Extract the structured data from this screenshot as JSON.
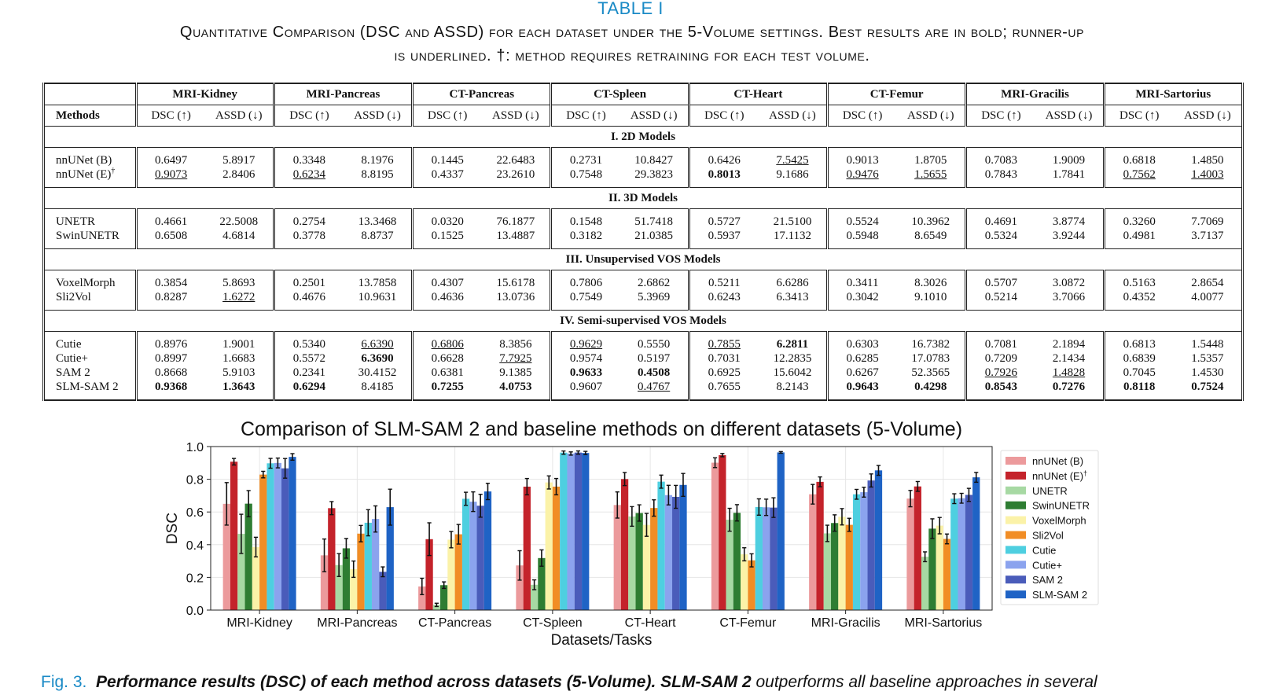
{
  "table": {
    "label": "TABLE I",
    "caption_line1": "Quantitative Comparison (DSC and ASSD) for each dataset under the 5-Volume settings. Best results are in bold; runner-up",
    "caption_line2": "is underlined. †: method requires retraining for each test volume.",
    "methods_header": "Methods",
    "datasets": [
      "MRI-Kidney",
      "MRI-Pancreas",
      "CT-Pancreas",
      "CT-Spleen",
      "CT-Heart",
      "CT-Femur",
      "MRI-Gracilis",
      "MRI-Sartorius"
    ],
    "metric_dsc": "DSC (↑)",
    "metric_assd": "ASSD (↓)",
    "sections": [
      {
        "title": "I. 2D Models",
        "rows": [
          {
            "method": "nnUNet (B)",
            "sup": "",
            "cells": [
              [
                "0.6497",
                ""
              ],
              [
                "5.8917",
                ""
              ],
              [
                "0.3348",
                ""
              ],
              [
                "8.1976",
                ""
              ],
              [
                "0.1445",
                ""
              ],
              [
                "22.6483",
                ""
              ],
              [
                "0.2731",
                ""
              ],
              [
                "10.8427",
                ""
              ],
              [
                "0.6426",
                ""
              ],
              [
                "7.5425",
                "u"
              ],
              [
                "0.9013",
                ""
              ],
              [
                "1.8705",
                ""
              ],
              [
                "0.7083",
                ""
              ],
              [
                "1.9009",
                ""
              ],
              [
                "0.6818",
                ""
              ],
              [
                "1.4850",
                ""
              ]
            ]
          },
          {
            "method": "nnUNet (E)",
            "sup": "†",
            "cells": [
              [
                "0.9073",
                "u"
              ],
              [
                "2.8406",
                ""
              ],
              [
                "0.6234",
                "u"
              ],
              [
                "8.8195",
                ""
              ],
              [
                "0.4337",
                ""
              ],
              [
                "23.2610",
                ""
              ],
              [
                "0.7548",
                ""
              ],
              [
                "29.3823",
                ""
              ],
              [
                "0.8013",
                "b"
              ],
              [
                "9.1686",
                ""
              ],
              [
                "0.9476",
                "u"
              ],
              [
                "1.5655",
                "u"
              ],
              [
                "0.7843",
                ""
              ],
              [
                "1.7841",
                ""
              ],
              [
                "0.7562",
                "u"
              ],
              [
                "1.4003",
                "u"
              ]
            ]
          }
        ]
      },
      {
        "title": "II. 3D Models",
        "rows": [
          {
            "method": "UNETR",
            "sup": "",
            "cells": [
              [
                "0.4661",
                ""
              ],
              [
                "22.5008",
                ""
              ],
              [
                "0.2754",
                ""
              ],
              [
                "13.3468",
                ""
              ],
              [
                "0.0320",
                ""
              ],
              [
                "76.1877",
                ""
              ],
              [
                "0.1548",
                ""
              ],
              [
                "51.7418",
                ""
              ],
              [
                "0.5727",
                ""
              ],
              [
                "21.5100",
                ""
              ],
              [
                "0.5524",
                ""
              ],
              [
                "10.3962",
                ""
              ],
              [
                "0.4691",
                ""
              ],
              [
                "3.8774",
                ""
              ],
              [
                "0.3260",
                ""
              ],
              [
                "7.7069",
                ""
              ]
            ]
          },
          {
            "method": "SwinUNETR",
            "sup": "",
            "cells": [
              [
                "0.6508",
                ""
              ],
              [
                "4.6814",
                ""
              ],
              [
                "0.3778",
                ""
              ],
              [
                "8.8737",
                ""
              ],
              [
                "0.1525",
                ""
              ],
              [
                "13.4887",
                ""
              ],
              [
                "0.3182",
                ""
              ],
              [
                "21.0385",
                ""
              ],
              [
                "0.5937",
                ""
              ],
              [
                "17.1132",
                ""
              ],
              [
                "0.5948",
                ""
              ],
              [
                "8.6549",
                ""
              ],
              [
                "0.5324",
                ""
              ],
              [
                "3.9244",
                ""
              ],
              [
                "0.4981",
                ""
              ],
              [
                "3.7137",
                ""
              ]
            ]
          }
        ]
      },
      {
        "title": "III. Unsupervised VOS Models",
        "rows": [
          {
            "method": "VoxelMorph",
            "sup": "",
            "cells": [
              [
                "0.3854",
                ""
              ],
              [
                "5.8693",
                ""
              ],
              [
                "0.2501",
                ""
              ],
              [
                "13.7858",
                ""
              ],
              [
                "0.4307",
                ""
              ],
              [
                "15.6178",
                ""
              ],
              [
                "0.7806",
                ""
              ],
              [
                "2.6862",
                ""
              ],
              [
                "0.5211",
                ""
              ],
              [
                "6.6286",
                ""
              ],
              [
                "0.3411",
                ""
              ],
              [
                "8.3026",
                ""
              ],
              [
                "0.5707",
                ""
              ],
              [
                "3.0872",
                ""
              ],
              [
                "0.5163",
                ""
              ],
              [
                "2.8654",
                ""
              ]
            ]
          },
          {
            "method": "Sli2Vol",
            "sup": "",
            "cells": [
              [
                "0.8287",
                ""
              ],
              [
                "1.6272",
                "u"
              ],
              [
                "0.4676",
                ""
              ],
              [
                "10.9631",
                ""
              ],
              [
                "0.4636",
                ""
              ],
              [
                "13.0736",
                ""
              ],
              [
                "0.7549",
                ""
              ],
              [
                "5.3969",
                ""
              ],
              [
                "0.6243",
                ""
              ],
              [
                "6.3413",
                ""
              ],
              [
                "0.3042",
                ""
              ],
              [
                "9.1010",
                ""
              ],
              [
                "0.5214",
                ""
              ],
              [
                "3.7066",
                ""
              ],
              [
                "0.4352",
                ""
              ],
              [
                "4.0077",
                ""
              ]
            ]
          }
        ]
      },
      {
        "title": "IV. Semi-supervised VOS Models",
        "rows": [
          {
            "method": "Cutie",
            "sup": "",
            "cells": [
              [
                "0.8976",
                ""
              ],
              [
                "1.9001",
                ""
              ],
              [
                "0.5340",
                ""
              ],
              [
                "6.6390",
                "u"
              ],
              [
                "0.6806",
                "u"
              ],
              [
                "8.3856",
                ""
              ],
              [
                "0.9629",
                "u"
              ],
              [
                "0.5550",
                ""
              ],
              [
                "0.7855",
                "u"
              ],
              [
                "6.2811",
                "b"
              ],
              [
                "0.6303",
                ""
              ],
              [
                "16.7382",
                ""
              ],
              [
                "0.7081",
                ""
              ],
              [
                "2.1894",
                ""
              ],
              [
                "0.6813",
                ""
              ],
              [
                "1.5448",
                ""
              ]
            ]
          },
          {
            "method": "Cutie+",
            "sup": "",
            "cells": [
              [
                "0.8997",
                ""
              ],
              [
                "1.6683",
                ""
              ],
              [
                "0.5572",
                ""
              ],
              [
                "6.3690",
                "b"
              ],
              [
                "0.6628",
                ""
              ],
              [
                "7.7925",
                "u"
              ],
              [
                "0.9574",
                ""
              ],
              [
                "0.5197",
                ""
              ],
              [
                "0.7031",
                ""
              ],
              [
                "12.2835",
                ""
              ],
              [
                "0.6285",
                ""
              ],
              [
                "17.0783",
                ""
              ],
              [
                "0.7209",
                ""
              ],
              [
                "2.1434",
                ""
              ],
              [
                "0.6839",
                ""
              ],
              [
                "1.5357",
                ""
              ]
            ]
          },
          {
            "method": "SAM 2",
            "sup": "",
            "cells": [
              [
                "0.8668",
                ""
              ],
              [
                "5.9103",
                ""
              ],
              [
                "0.2341",
                ""
              ],
              [
                "30.4152",
                ""
              ],
              [
                "0.6381",
                ""
              ],
              [
                "9.1385",
                ""
              ],
              [
                "0.9633",
                "b"
              ],
              [
                "0.4508",
                "b"
              ],
              [
                "0.6925",
                ""
              ],
              [
                "15.6042",
                ""
              ],
              [
                "0.6267",
                ""
              ],
              [
                "52.3565",
                ""
              ],
              [
                "0.7926",
                "u"
              ],
              [
                "1.4828",
                "u"
              ],
              [
                "0.7045",
                ""
              ],
              [
                "1.4530",
                ""
              ]
            ]
          },
          {
            "method": "SLM-SAM 2",
            "sup": "",
            "cells": [
              [
                "0.9368",
                "b"
              ],
              [
                "1.3643",
                "b"
              ],
              [
                "0.6294",
                "b"
              ],
              [
                "8.4185",
                ""
              ],
              [
                "0.7255",
                "b"
              ],
              [
                "4.0753",
                "b"
              ],
              [
                "0.9607",
                ""
              ],
              [
                "0.4767",
                "u"
              ],
              [
                "0.7655",
                ""
              ],
              [
                "8.2143",
                ""
              ],
              [
                "0.9643",
                "b"
              ],
              [
                "0.4298",
                "b"
              ],
              [
                "0.8543",
                "b"
              ],
              [
                "0.7276",
                "b"
              ],
              [
                "0.8118",
                "b"
              ],
              [
                "0.7524",
                "b"
              ]
            ]
          }
        ]
      }
    ]
  },
  "figure_caption": {
    "label": "Fig. 3.",
    "bold": "Performance results (DSC) of each method across datasets (5-Volume). SLM-SAM 2",
    "rest": "outperforms all baseline approaches in several"
  },
  "chart_data": {
    "type": "bar",
    "title": "Comparison of SLM-SAM 2 and baseline methods on different datasets (5-Volume)",
    "xlabel": "Datasets/Tasks",
    "ylabel": "DSC",
    "ylim": [
      0,
      1.0
    ],
    "yticks": [
      "0.0",
      "0.2",
      "0.4",
      "0.6",
      "0.8",
      "1.0"
    ],
    "grid": true,
    "legend_position": "right",
    "categories": [
      "MRI-Kidney",
      "MRI-Pancreas",
      "CT-Pancreas",
      "CT-Spleen",
      "CT-Heart",
      "CT-Femur",
      "MRI-Gracilis",
      "MRI-Sartorius"
    ],
    "series": [
      {
        "name": "nnUNet (B)",
        "sup": "",
        "color": "#ec9a9c",
        "values": [
          0.6497,
          0.3348,
          0.1445,
          0.2731,
          0.6426,
          0.9013,
          0.7083,
          0.6818
        ],
        "errors": [
          0.13,
          0.1,
          0.05,
          0.09,
          0.08,
          0.03,
          0.06,
          0.05
        ]
      },
      {
        "name": "nnUNet (E)",
        "sup": "†",
        "color": "#c4232b",
        "values": [
          0.9073,
          0.6234,
          0.4337,
          0.7548,
          0.8013,
          0.9476,
          0.7843,
          0.7562
        ],
        "errors": [
          0.02,
          0.04,
          0.1,
          0.05,
          0.04,
          0.01,
          0.03,
          0.03
        ]
      },
      {
        "name": "UNETR",
        "sup": "",
        "color": "#a7d9a3",
        "values": [
          0.4661,
          0.2754,
          0.032,
          0.1548,
          0.5727,
          0.5524,
          0.4691,
          0.326
        ],
        "errors": [
          0.12,
          0.07,
          0.01,
          0.03,
          0.06,
          0.07,
          0.05,
          0.03
        ]
      },
      {
        "name": "SwinUNETR",
        "sup": "",
        "color": "#2e7d32",
        "values": [
          0.6508,
          0.3778,
          0.1525,
          0.3182,
          0.5937,
          0.5948,
          0.5324,
          0.4981
        ],
        "errors": [
          0.08,
          0.06,
          0.02,
          0.05,
          0.05,
          0.05,
          0.05,
          0.06
        ]
      },
      {
        "name": "VoxelMorph",
        "sup": "",
        "color": "#fbf2a8",
        "values": [
          0.3854,
          0.2501,
          0.4307,
          0.7806,
          0.5211,
          0.3411,
          0.5707,
          0.5163
        ],
        "errors": [
          0.06,
          0.05,
          0.05,
          0.04,
          0.07,
          0.04,
          0.05,
          0.05
        ]
      },
      {
        "name": "Sli2Vol",
        "sup": "",
        "color": "#f18d25",
        "values": [
          0.8287,
          0.4676,
          0.4636,
          0.7549,
          0.6243,
          0.3042,
          0.5214,
          0.4352
        ],
        "errors": [
          0.02,
          0.05,
          0.06,
          0.05,
          0.05,
          0.04,
          0.04,
          0.03
        ]
      },
      {
        "name": "Cutie",
        "sup": "",
        "color": "#4ecfe0",
        "values": [
          0.8976,
          0.534,
          0.6806,
          0.9629,
          0.7855,
          0.6303,
          0.7081,
          0.6813
        ],
        "errors": [
          0.03,
          0.08,
          0.04,
          0.01,
          0.04,
          0.05,
          0.03,
          0.03
        ]
      },
      {
        "name": "Cutie+",
        "sup": "",
        "color": "#8ba3ee",
        "values": [
          0.8997,
          0.5572,
          0.6628,
          0.9574,
          0.7031,
          0.6285,
          0.7209,
          0.6839
        ],
        "errors": [
          0.03,
          0.08,
          0.06,
          0.01,
          0.06,
          0.05,
          0.03,
          0.03
        ]
      },
      {
        "name": "SAM 2",
        "sup": "",
        "color": "#4a5cba",
        "values": [
          0.8668,
          0.2341,
          0.6381,
          0.9633,
          0.6925,
          0.6267,
          0.7926,
          0.7045
        ],
        "errors": [
          0.06,
          0.03,
          0.07,
          0.01,
          0.07,
          0.06,
          0.04,
          0.04
        ]
      },
      {
        "name": "SLM-SAM 2",
        "sup": "",
        "color": "#1f63c5",
        "values": [
          0.9368,
          0.6294,
          0.7255,
          0.9607,
          0.7655,
          0.9643,
          0.8543,
          0.8118
        ],
        "errors": [
          0.02,
          0.11,
          0.05,
          0.01,
          0.07,
          0.005,
          0.03,
          0.03
        ]
      }
    ]
  }
}
